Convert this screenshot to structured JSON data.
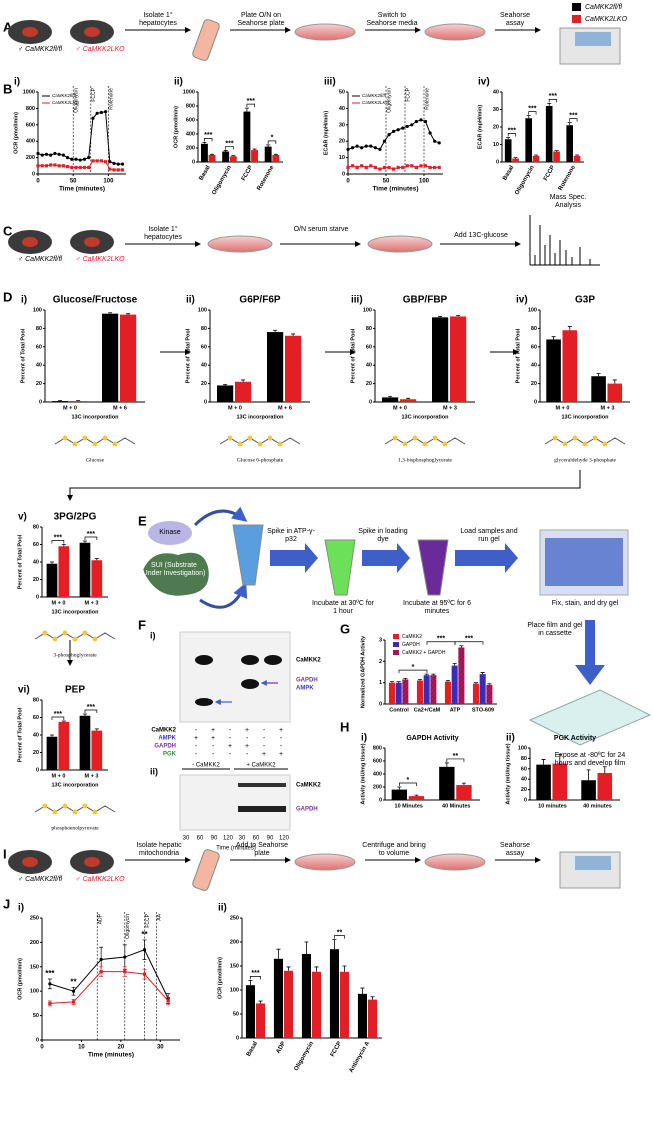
{
  "legend": [
    {
      "name": "CaMKK2fl/fl",
      "color": "#000000"
    },
    {
      "name": "CaMKK2LKO",
      "color": "#e31e24"
    }
  ],
  "panel_labels": [
    "A",
    "B",
    "C",
    "D",
    "E",
    "F",
    "G",
    "H",
    "I",
    "J"
  ],
  "mice": [
    "♂ CaMKK2fl/fl",
    "♂ CaMKK2LKO"
  ],
  "workflow_A": [
    "Isolate 1° hepatocytes",
    "Plate O/N on Seahorse plate",
    "Switch to Seahorse media",
    "Seahorse assay"
  ],
  "workflow_C": [
    "Isolate 1° hepatocytes",
    "O/N serum starve",
    "Add 13C-glucose",
    "Mass Spec. Analysis"
  ],
  "workflow_I": [
    "Isolate hepatic mitochondria",
    "Add to Seahorse plate",
    "Centrifuge and bring to volume",
    "Seahorse assay"
  ],
  "workflow_E": {
    "kinase": "Kinase",
    "sui": "SUI (Substrate Under Investigation)",
    "steps": [
      "Spike in ATP-γ-p32",
      "Incubate at 30ºC for 1 hour",
      "Spike in loading dye",
      "Incubate at 95ºC for 6 minutes",
      "Load samples and run gel",
      "Fix, stain, and dry gel",
      "Place film and gel in cassette",
      "Expose at -80ºC for 24 hours and develop film"
    ]
  },
  "gel_i": {
    "panel": "i)",
    "bands": [
      "CaMKK2",
      "GAPDH",
      "AMPK"
    ],
    "rows": [
      {
        "label": "CaMKK2",
        "color": "#000000",
        "cells": [
          "-",
          "+",
          "-",
          "+",
          "-",
          "+"
        ]
      },
      {
        "label": "AMPK",
        "color": "#3b3bc4",
        "cells": [
          "+",
          "+",
          "-",
          "-",
          "-",
          "-"
        ]
      },
      {
        "label": "GAPDH",
        "color": "#7b2f9e",
        "cells": [
          "-",
          "-",
          "+",
          "+",
          "-",
          "-"
        ]
      },
      {
        "label": "PGK",
        "color": "#2e8b2e",
        "cells": [
          "-",
          "-",
          "-",
          "-",
          "+",
          "+"
        ]
      }
    ]
  },
  "gel_ii": {
    "panel": "ii)",
    "groups": [
      "- CaMKK2",
      "+ CaMKK2"
    ],
    "bands": [
      "CaMKK2",
      "GAPDH"
    ],
    "times": [
      "30",
      "60",
      "90",
      "120",
      "30",
      "60",
      "90",
      "120"
    ],
    "xlabel": "Time (minutes)"
  },
  "chart_data": [
    {
      "type": "line",
      "panel": "i)",
      "ylabel": "OCR (pmol/min)",
      "xlabel": "Time (minutes)",
      "legend": true,
      "x": [
        0,
        6,
        12,
        18,
        24,
        30,
        36,
        42,
        48,
        54,
        60,
        66,
        72,
        78,
        84,
        90,
        96,
        102,
        108,
        114,
        120
      ],
      "series": [
        {
          "name": "CaMKK2fl/fl",
          "color": "#000000",
          "values": [
            250,
            230,
            240,
            230,
            250,
            240,
            230,
            200,
            180,
            180,
            170,
            180,
            200,
            680,
            740,
            750,
            760,
            150,
            130,
            120,
            120
          ]
        },
        {
          "name": "CaMKK2LKO",
          "color": "#e31e24",
          "values": [
            100,
            100,
            100,
            110,
            110,
            100,
            100,
            90,
            80,
            80,
            80,
            80,
            80,
            160,
            160,
            160,
            150,
            60,
            50,
            50,
            50
          ]
        }
      ],
      "xlim": [
        0,
        125
      ],
      "xticks": [
        0,
        50,
        100
      ],
      "ylim": [
        0,
        1000
      ],
      "yticks": [
        0,
        200,
        400,
        600,
        800,
        1000
      ],
      "events": [
        {
          "x": 50,
          "label": "Oligomycin"
        },
        {
          "x": 75,
          "label": "FCCP"
        },
        {
          "x": 100,
          "label": "Rotenone"
        }
      ]
    },
    {
      "type": "bar",
      "panel": "ii)",
      "ylabel": "OCR (pmol/min)",
      "categories": [
        "Basal",
        "Oligomycin",
        "FCCP",
        "Rotenone"
      ],
      "series": [
        {
          "name": "CaMKK2fl/fl",
          "color": "#000000",
          "values": [
            260,
            150,
            720,
            220
          ],
          "errors": [
            20,
            15,
            50,
            25
          ]
        },
        {
          "name": "CaMKK2LKO",
          "color": "#e31e24",
          "values": [
            100,
            80,
            170,
            100
          ],
          "errors": [
            10,
            10,
            15,
            10
          ]
        }
      ],
      "ylim": [
        0,
        1000
      ],
      "yticks": [
        0,
        200,
        400,
        600,
        800,
        1000
      ],
      "significance": [
        "***",
        "***",
        "***",
        "*"
      ]
    },
    {
      "type": "line",
      "panel": "iii)",
      "ylabel": "ECAR (mpH/min)",
      "xlabel": "Time (minutes)",
      "legend": true,
      "x": [
        0,
        6,
        12,
        18,
        24,
        30,
        36,
        42,
        48,
        54,
        60,
        66,
        72,
        78,
        84,
        90,
        96,
        102,
        108,
        114,
        120
      ],
      "series": [
        {
          "name": "CaMKK2fl/fl",
          "color": "#000000",
          "values": [
            15,
            16,
            17,
            16,
            17,
            17,
            16,
            15,
            20,
            24,
            26,
            27,
            28,
            29,
            30,
            32,
            33,
            32,
            25,
            20,
            19
          ]
        },
        {
          "name": "CaMKK2LKO",
          "color": "#e31e24",
          "values": [
            4,
            5,
            4,
            5,
            4,
            5,
            4,
            3,
            4,
            4,
            3,
            4,
            4,
            5,
            5,
            4,
            5,
            5,
            4,
            4,
            4
          ]
        }
      ],
      "xlim": [
        0,
        125
      ],
      "xticks": [
        0,
        50,
        100
      ],
      "ylim": [
        0,
        50
      ],
      "yticks": [
        0,
        10,
        20,
        30,
        40,
        50
      ],
      "events": [
        {
          "x": 50,
          "label": "Oligomycin"
        },
        {
          "x": 75,
          "label": "FCCP"
        },
        {
          "x": 100,
          "label": "Rotenone"
        }
      ]
    },
    {
      "type": "bar",
      "panel": "iv)",
      "ylabel": "ECAR (mpH/min)",
      "categories": [
        "Basal",
        "Oligomycin",
        "FCCP",
        "Rotenone"
      ],
      "series": [
        {
          "name": "CaMKK2fl/fl",
          "color": "#000000",
          "values": [
            13,
            25,
            32,
            21
          ],
          "errors": [
            1,
            1.5,
            1.5,
            1.5
          ]
        },
        {
          "name": "CaMKK2LKO",
          "color": "#e31e24",
          "values": [
            2,
            3.5,
            6,
            3.5
          ],
          "errors": [
            0.5,
            0.5,
            0.5,
            0.5
          ]
        }
      ],
      "ylim": [
        0,
        40
      ],
      "yticks": [
        0,
        10,
        20,
        30,
        40
      ],
      "significance": [
        "***",
        "***",
        "***",
        "***"
      ]
    },
    {
      "type": "bar",
      "panel": "i)",
      "title": "Glucose/Fructose",
      "ylabel": "Percent of Total Pool",
      "xlabel": "13C incorporation",
      "molecule": "Glucose",
      "categories": [
        "M + 0",
        "M + 6"
      ],
      "series": [
        {
          "name": "CaMKK2fl/fl",
          "color": "#000000",
          "values": [
            1,
            96
          ],
          "errors": [
            0.5,
            1
          ]
        },
        {
          "name": "CaMKK2LKO",
          "color": "#e31e24",
          "values": [
            1,
            95
          ],
          "errors": [
            0.5,
            1
          ]
        }
      ],
      "ylim": [
        0,
        100
      ],
      "yticks": [
        0,
        20,
        40,
        60,
        80,
        100
      ]
    },
    {
      "type": "bar",
      "panel": "ii)",
      "title": "G6P/F6P",
      "ylabel": "Percent of Total Pool",
      "xlabel": "13C incorporation",
      "molecule": "Glucose 6-phosphate",
      "categories": [
        "M + 0",
        "M + 6"
      ],
      "series": [
        {
          "name": "CaMKK2fl/fl",
          "color": "#000000",
          "values": [
            18,
            76
          ],
          "errors": [
            1,
            2
          ]
        },
        {
          "name": "CaMKK2LKO",
          "color": "#e31e24",
          "values": [
            22,
            72
          ],
          "errors": [
            2,
            2
          ]
        }
      ],
      "ylim": [
        0,
        100
      ],
      "yticks": [
        0,
        20,
        40,
        60,
        80,
        100
      ]
    },
    {
      "type": "bar",
      "panel": "iii)",
      "title": "GBP/FBP",
      "ylabel": "Percent of Total Pool",
      "xlabel": "13C incorporation",
      "molecule": "1,3-bisphosphoglycerate",
      "categories": [
        "M + 0",
        "M + 3"
      ],
      "series": [
        {
          "name": "CaMKK2fl/fl",
          "color": "#000000",
          "values": [
            5,
            92
          ],
          "errors": [
            1,
            1
          ]
        },
        {
          "name": "CaMKK2LKO",
          "color": "#e31e24",
          "values": [
            3,
            93
          ],
          "errors": [
            1,
            1
          ]
        }
      ],
      "ylim": [
        0,
        100
      ],
      "yticks": [
        0,
        20,
        40,
        60,
        80,
        100
      ]
    },
    {
      "type": "bar",
      "panel": "iv)",
      "title": "G3P",
      "ylabel": "Percent of Total Pool",
      "xlabel": "13C incorporation",
      "molecule": "glyceraldehyde 3-phosphate",
      "categories": [
        "M + 0",
        "M + 3"
      ],
      "series": [
        {
          "name": "CaMKK2fl/fl",
          "color": "#000000",
          "values": [
            68,
            28
          ],
          "errors": [
            3,
            3
          ]
        },
        {
          "name": "CaMKK2LKO",
          "color": "#e31e24",
          "values": [
            78,
            20
          ],
          "errors": [
            4,
            4
          ]
        }
      ],
      "ylim": [
        0,
        100
      ],
      "yticks": [
        0,
        20,
        40,
        60,
        80,
        100
      ]
    },
    {
      "type": "bar",
      "panel": "v)",
      "title": "3PG/2PG",
      "ylabel": "Percent of Total Pool",
      "xlabel": "13C incorporation",
      "molecule": "3-phosphoglycerate",
      "categories": [
        "M + 0",
        "M + 3"
      ],
      "series": [
        {
          "name": "CaMKK2fl/fl",
          "color": "#000000",
          "values": [
            38,
            62
          ],
          "errors": [
            2,
            2
          ]
        },
        {
          "name": "CaMKK2LKO",
          "color": "#e31e24",
          "values": [
            58,
            42
          ],
          "errors": [
            2,
            2
          ]
        }
      ],
      "ylim": [
        0,
        80
      ],
      "yticks": [
        0,
        20,
        40,
        60,
        80
      ],
      "significance": [
        "***",
        "***"
      ]
    },
    {
      "type": "bar",
      "panel": "vi)",
      "title": "PEP",
      "ylabel": "Percent of Total Pool",
      "xlabel": "13C incorporation",
      "molecule": "phosphoenolpyruvate",
      "categories": [
        "M + 0",
        "M + 3"
      ],
      "series": [
        {
          "name": "CaMKK2fl/fl",
          "color": "#000000",
          "values": [
            38,
            62
          ],
          "errors": [
            2,
            2
          ]
        },
        {
          "name": "CaMKK2LKO",
          "color": "#e31e24",
          "values": [
            55,
            45
          ],
          "errors": [
            1,
            2
          ]
        }
      ],
      "ylim": [
        0,
        80
      ],
      "yticks": [
        0,
        20,
        40,
        60,
        80
      ],
      "significance": [
        "***",
        "***"
      ]
    },
    {
      "type": "bar",
      "ylabel": "Normalized GAPDH Activity",
      "categories": [
        "Control",
        "Ca2+/CaM",
        "ATP",
        "STO-609"
      ],
      "legend": true,
      "series": [
        {
          "name": "CaMKK2",
          "color": "#e31e24",
          "values": [
            1.0,
            1.1,
            1.05,
            0.95
          ],
          "errors": [
            0.05,
            0.05,
            0.05,
            0.05
          ]
        },
        {
          "name": "GAPDH",
          "color": "#3b2bb5",
          "values": [
            1.0,
            1.35,
            1.8,
            1.4
          ],
          "errors": [
            0.05,
            0.05,
            0.1,
            0.08
          ]
        },
        {
          "name": "CaMKK2 + GAPDH",
          "color": "#b5174a",
          "pattern": "hatch",
          "values": [
            1.15,
            1.35,
            2.65,
            0.9
          ],
          "errors": [
            0.05,
            0.05,
            0.08,
            0.05
          ]
        }
      ],
      "ylim": [
        0,
        3
      ],
      "yticks": [
        0,
        1,
        2,
        3
      ],
      "significance": [
        null,
        "*",
        "***",
        "***"
      ],
      "significance_span": "previous"
    },
    {
      "type": "bar",
      "panel": "i)",
      "title": "GAPDH Activity",
      "ylabel": "Activity (mU/mg tissue)",
      "categories": [
        "10 Minutes",
        "40 Minutes"
      ],
      "series": [
        {
          "name": "CaMKK2fl/fl",
          "color": "#000000",
          "values": [
            160,
            510
          ],
          "errors": [
            40,
            60
          ]
        },
        {
          "name": "CaMKK2LKO",
          "color": "#e31e24",
          "values": [
            60,
            230
          ],
          "errors": [
            15,
            30
          ]
        }
      ],
      "ylim": [
        0,
        800
      ],
      "yticks": [
        0,
        200,
        400,
        600,
        800
      ],
      "significance": [
        "*",
        "**"
      ]
    },
    {
      "type": "bar",
      "panel": "ii)",
      "title": "PGK Activity",
      "ylabel": "Activity (mU/mg tissue)",
      "categories": [
        "10 minutes",
        "40 minutes"
      ],
      "series": [
        {
          "name": "CaMKK2fl/fl",
          "color": "#000000",
          "values": [
            68,
            38
          ],
          "errors": [
            10,
            20
          ]
        },
        {
          "name": "CaMKK2LKO",
          "color": "#e31e24",
          "values": [
            70,
            52
          ],
          "errors": [
            18,
            12
          ]
        }
      ],
      "ylim": [
        0,
        100
      ],
      "yticks": [
        0,
        20,
        40,
        60,
        80,
        100
      ]
    },
    {
      "type": "line",
      "panel": "i)",
      "ylabel": "OCR (pmol/min)",
      "xlabel": "Time (minutes)",
      "x": [
        2,
        8,
        15,
        21,
        26,
        32
      ],
      "series": [
        {
          "name": "CaMKK2fl/fl",
          "color": "#000000",
          "values": [
            115,
            100,
            165,
            170,
            185,
            85
          ],
          "errors": [
            10,
            8,
            25,
            25,
            20,
            10
          ]
        },
        {
          "name": "CaMKK2LKO",
          "color": "#e31e24",
          "values": [
            75,
            78,
            140,
            140,
            135,
            80
          ],
          "errors": [
            5,
            5,
            10,
            10,
            10,
            8
          ]
        }
      ],
      "xlim": [
        0,
        35
      ],
      "xticks": [
        0,
        10,
        20,
        30
      ],
      "ylim": [
        0,
        250
      ],
      "yticks": [
        0,
        50,
        100,
        150,
        200,
        250
      ],
      "events": [
        {
          "x": 14,
          "label": "ADP"
        },
        {
          "x": 21,
          "label": "Oligomycin"
        },
        {
          "x": 26,
          "label": "FCCP"
        },
        {
          "x": 29,
          "label": "AA"
        }
      ],
      "significance": [
        "***",
        "**",
        null,
        null,
        "**",
        null
      ]
    },
    {
      "type": "bar",
      "panel": "ii)",
      "ylabel": "OCR (pmol/min)",
      "categories": [
        "Basal",
        "ADP",
        "Oligomycin",
        "FCCP",
        "Antimycin A"
      ],
      "series": [
        {
          "name": "CaMKK2fl/fl",
          "color": "#000000",
          "values": [
            110,
            165,
            175,
            185,
            92
          ],
          "errors": [
            10,
            20,
            25,
            20,
            12
          ]
        },
        {
          "name": "CaMKK2LKO",
          "color": "#e31e24",
          "values": [
            72,
            140,
            138,
            138,
            80
          ],
          "errors": [
            5,
            8,
            10,
            12,
            6
          ]
        }
      ],
      "ylim": [
        0,
        250
      ],
      "yticks": [
        0,
        50,
        100,
        150,
        200,
        250
      ],
      "significance": [
        "***",
        null,
        null,
        "**",
        null
      ]
    }
  ]
}
